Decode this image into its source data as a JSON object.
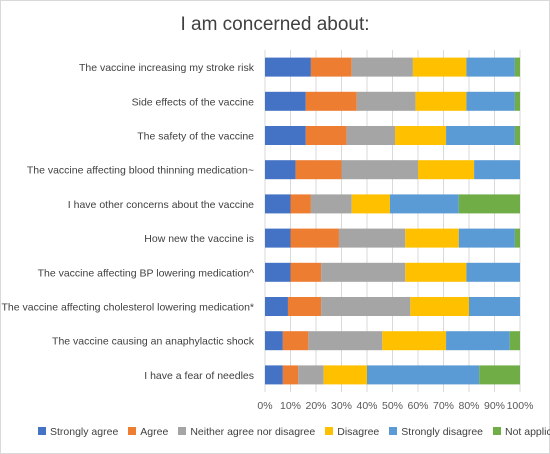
{
  "chart_data": {
    "type": "bar",
    "orientation": "horizontal",
    "stacked": "percent",
    "title": "I am concerned about:",
    "categories": [
      "The vaccine increasing my stroke risk",
      "Side effects of the vaccine",
      "The safety of the vaccine",
      "The vaccine affecting blood thinning medication~",
      "I have other concerns about the vaccine",
      "How new the vaccine is",
      "The vaccine affecting BP lowering medication^",
      "The vaccine affecting cholesterol lowering medication*",
      "The vaccine causing an anaphylactic shock",
      "I have a fear of needles"
    ],
    "series": [
      {
        "name": "Strongly agree",
        "color": "#4472C4",
        "values": [
          18,
          16,
          16,
          12,
          10,
          10,
          10,
          9,
          7,
          7
        ]
      },
      {
        "name": "Agree",
        "color": "#ED7D31",
        "values": [
          16,
          20,
          16,
          18,
          8,
          19,
          12,
          13,
          10,
          6
        ]
      },
      {
        "name": "Neither agree nor disagree",
        "color": "#A5A5A5",
        "values": [
          24,
          23,
          19,
          30,
          16,
          26,
          33,
          35,
          29,
          10
        ]
      },
      {
        "name": "Disagree",
        "color": "#FFC000",
        "values": [
          21,
          20,
          20,
          22,
          15,
          21,
          24,
          23,
          25,
          17
        ]
      },
      {
        "name": "Strongly disagree",
        "color": "#5B9BD5",
        "values": [
          19,
          19,
          27,
          18,
          27,
          22,
          21,
          20,
          25,
          44
        ]
      },
      {
        "name": "Not applicable",
        "color": "#70AD47",
        "values": [
          2,
          2,
          2,
          0,
          24,
          2,
          0,
          0,
          4,
          16
        ]
      }
    ],
    "xlim": [
      0,
      100
    ],
    "xticks": [
      "0%",
      "10%",
      "20%",
      "30%",
      "40%",
      "50%",
      "60%",
      "70%",
      "80%",
      "90%",
      "100%"
    ],
    "grid": true,
    "legend_position": "bottom"
  }
}
